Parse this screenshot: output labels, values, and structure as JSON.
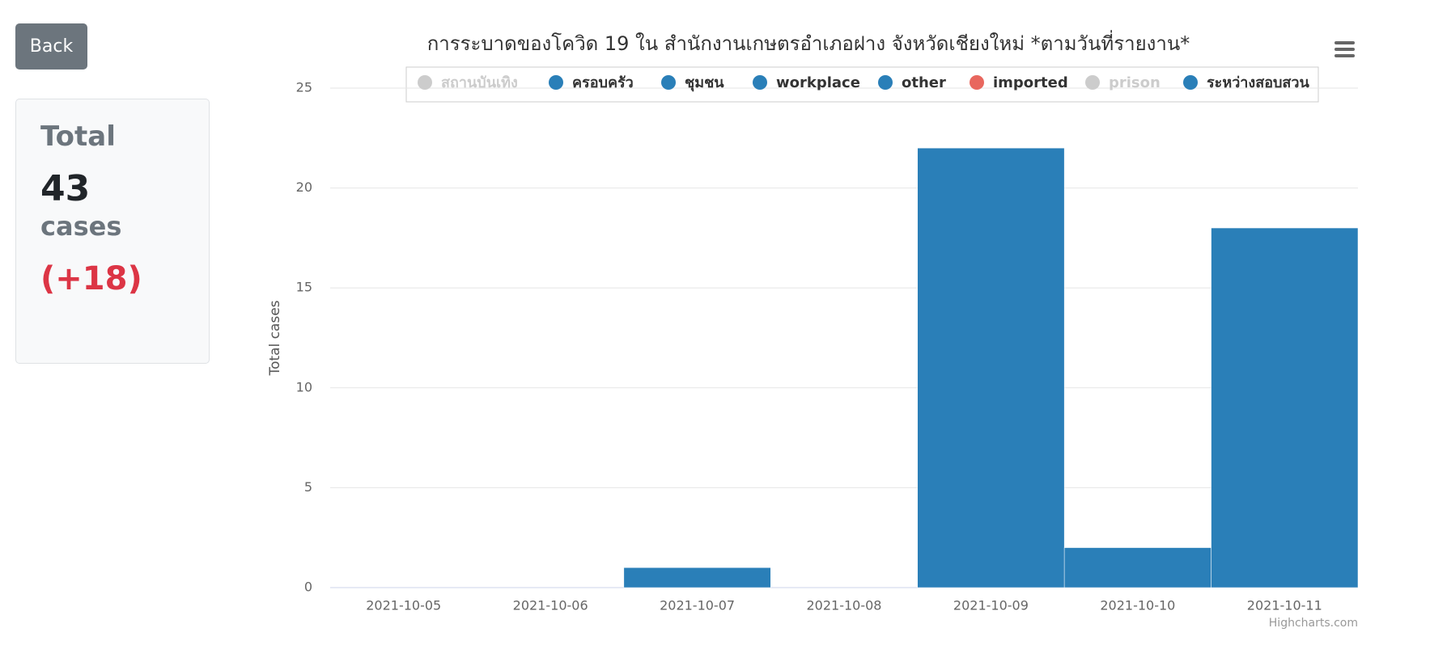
{
  "back_button": "Back",
  "summary": {
    "label": "Total",
    "value": 43,
    "unit": "cases",
    "change": "(+18)"
  },
  "chart_data": {
    "type": "stacked_bar",
    "title": "การระบาดของโควิด 19 ใน สำนักงานเกษตรอำเภอฝาง จังหวัดเชียงใหม่ *ตามวันที่รายงาน*",
    "y_label": "Total cases",
    "credit": "Highcharts.com",
    "categories": [
      "2021-10-05",
      "2021-10-06",
      "2021-10-07",
      "2021-10-08",
      "2021-10-09",
      "2021-10-10",
      "2021-10-11"
    ],
    "series": [
      {
        "name": "สถานบันเทิง",
        "color": "#2a7fb8",
        "visible": false,
        "values": [
          0,
          0,
          0,
          0,
          0,
          0,
          0
        ]
      },
      {
        "name": "ครอบครัว",
        "color": "#2a7fb8",
        "visible": true,
        "values": [
          0,
          0,
          0,
          0,
          0,
          0,
          0
        ]
      },
      {
        "name": "ชุมชน",
        "color": "#2a7fb8",
        "visible": true,
        "values": [
          0,
          0,
          0,
          0,
          0,
          0,
          0
        ]
      },
      {
        "name": "workplace",
        "color": "#2a7fb8",
        "visible": true,
        "values": [
          0,
          0,
          0,
          0,
          0,
          0,
          0
        ]
      },
      {
        "name": "other",
        "color": "#2a7fb8",
        "visible": true,
        "values": [
          0,
          0,
          0,
          0,
          0,
          0,
          0
        ]
      },
      {
        "name": "imported",
        "color": "#e8675e",
        "visible": true,
        "values": [
          0,
          0,
          0,
          0,
          0,
          0,
          0
        ]
      },
      {
        "name": "prison",
        "color": "#2a7fb8",
        "visible": false,
        "values": [
          0,
          0,
          0,
          0,
          0,
          0,
          0
        ]
      },
      {
        "name": "ระหว่างสอบสวน",
        "color": "#2a7fb8",
        "visible": true,
        "values": [
          0,
          0,
          1,
          0,
          22,
          2,
          18
        ]
      }
    ],
    "ylim": [
      0,
      25
    ],
    "yticks": [
      0,
      5,
      10,
      15,
      20,
      25
    ],
    "grid": true
  }
}
